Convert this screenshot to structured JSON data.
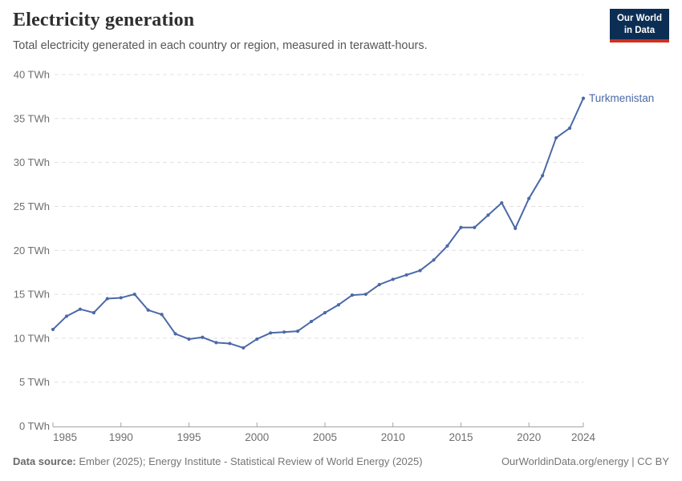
{
  "header": {
    "title": "Electricity generation",
    "subtitle": "Total electricity generated in each country or region, measured in terawatt-hours."
  },
  "logo": {
    "line1": "Our World",
    "line2": "in Data",
    "bg_color": "#0d2e54",
    "bar_color": "#d0301f"
  },
  "footer": {
    "source_label": "Data source:",
    "source_text": " Ember (2025); Energy Institute - Statistical Review of World Energy (2025)",
    "attribution": "OurWorldinData.org/energy | CC BY"
  },
  "chart_data": {
    "type": "line",
    "title": "Electricity generation",
    "unit": "TWh",
    "ytick_suffix": " TWh",
    "ylim": [
      0,
      40
    ],
    "yticks": [
      0,
      5,
      10,
      15,
      20,
      25,
      30,
      35,
      40
    ],
    "xticks": [
      1985,
      1990,
      1995,
      2000,
      2005,
      2010,
      2015,
      2020,
      2024
    ],
    "grid": "horizontal-dashed",
    "legend_position": "end-of-line-label",
    "x": [
      1985,
      1986,
      1987,
      1988,
      1989,
      1990,
      1991,
      1992,
      1993,
      1994,
      1995,
      1996,
      1997,
      1998,
      1999,
      2000,
      2001,
      2002,
      2003,
      2004,
      2005,
      2006,
      2007,
      2008,
      2009,
      2010,
      2011,
      2012,
      2013,
      2014,
      2015,
      2016,
      2017,
      2018,
      2019,
      2020,
      2021,
      2022,
      2023,
      2024
    ],
    "series": [
      {
        "name": "Turkmenistan",
        "color": "#4b69a8",
        "values": [
          11.0,
          12.5,
          13.3,
          12.9,
          14.5,
          14.6,
          15.0,
          13.2,
          12.7,
          10.5,
          9.9,
          10.1,
          9.5,
          9.4,
          8.9,
          9.9,
          10.6,
          10.7,
          10.8,
          11.9,
          12.9,
          13.8,
          14.9,
          15.0,
          16.1,
          16.7,
          17.2,
          17.7,
          18.9,
          20.5,
          22.6,
          22.6,
          24.0,
          25.4,
          22.5,
          25.9,
          28.5,
          32.8,
          33.9,
          37.3
        ]
      }
    ]
  }
}
